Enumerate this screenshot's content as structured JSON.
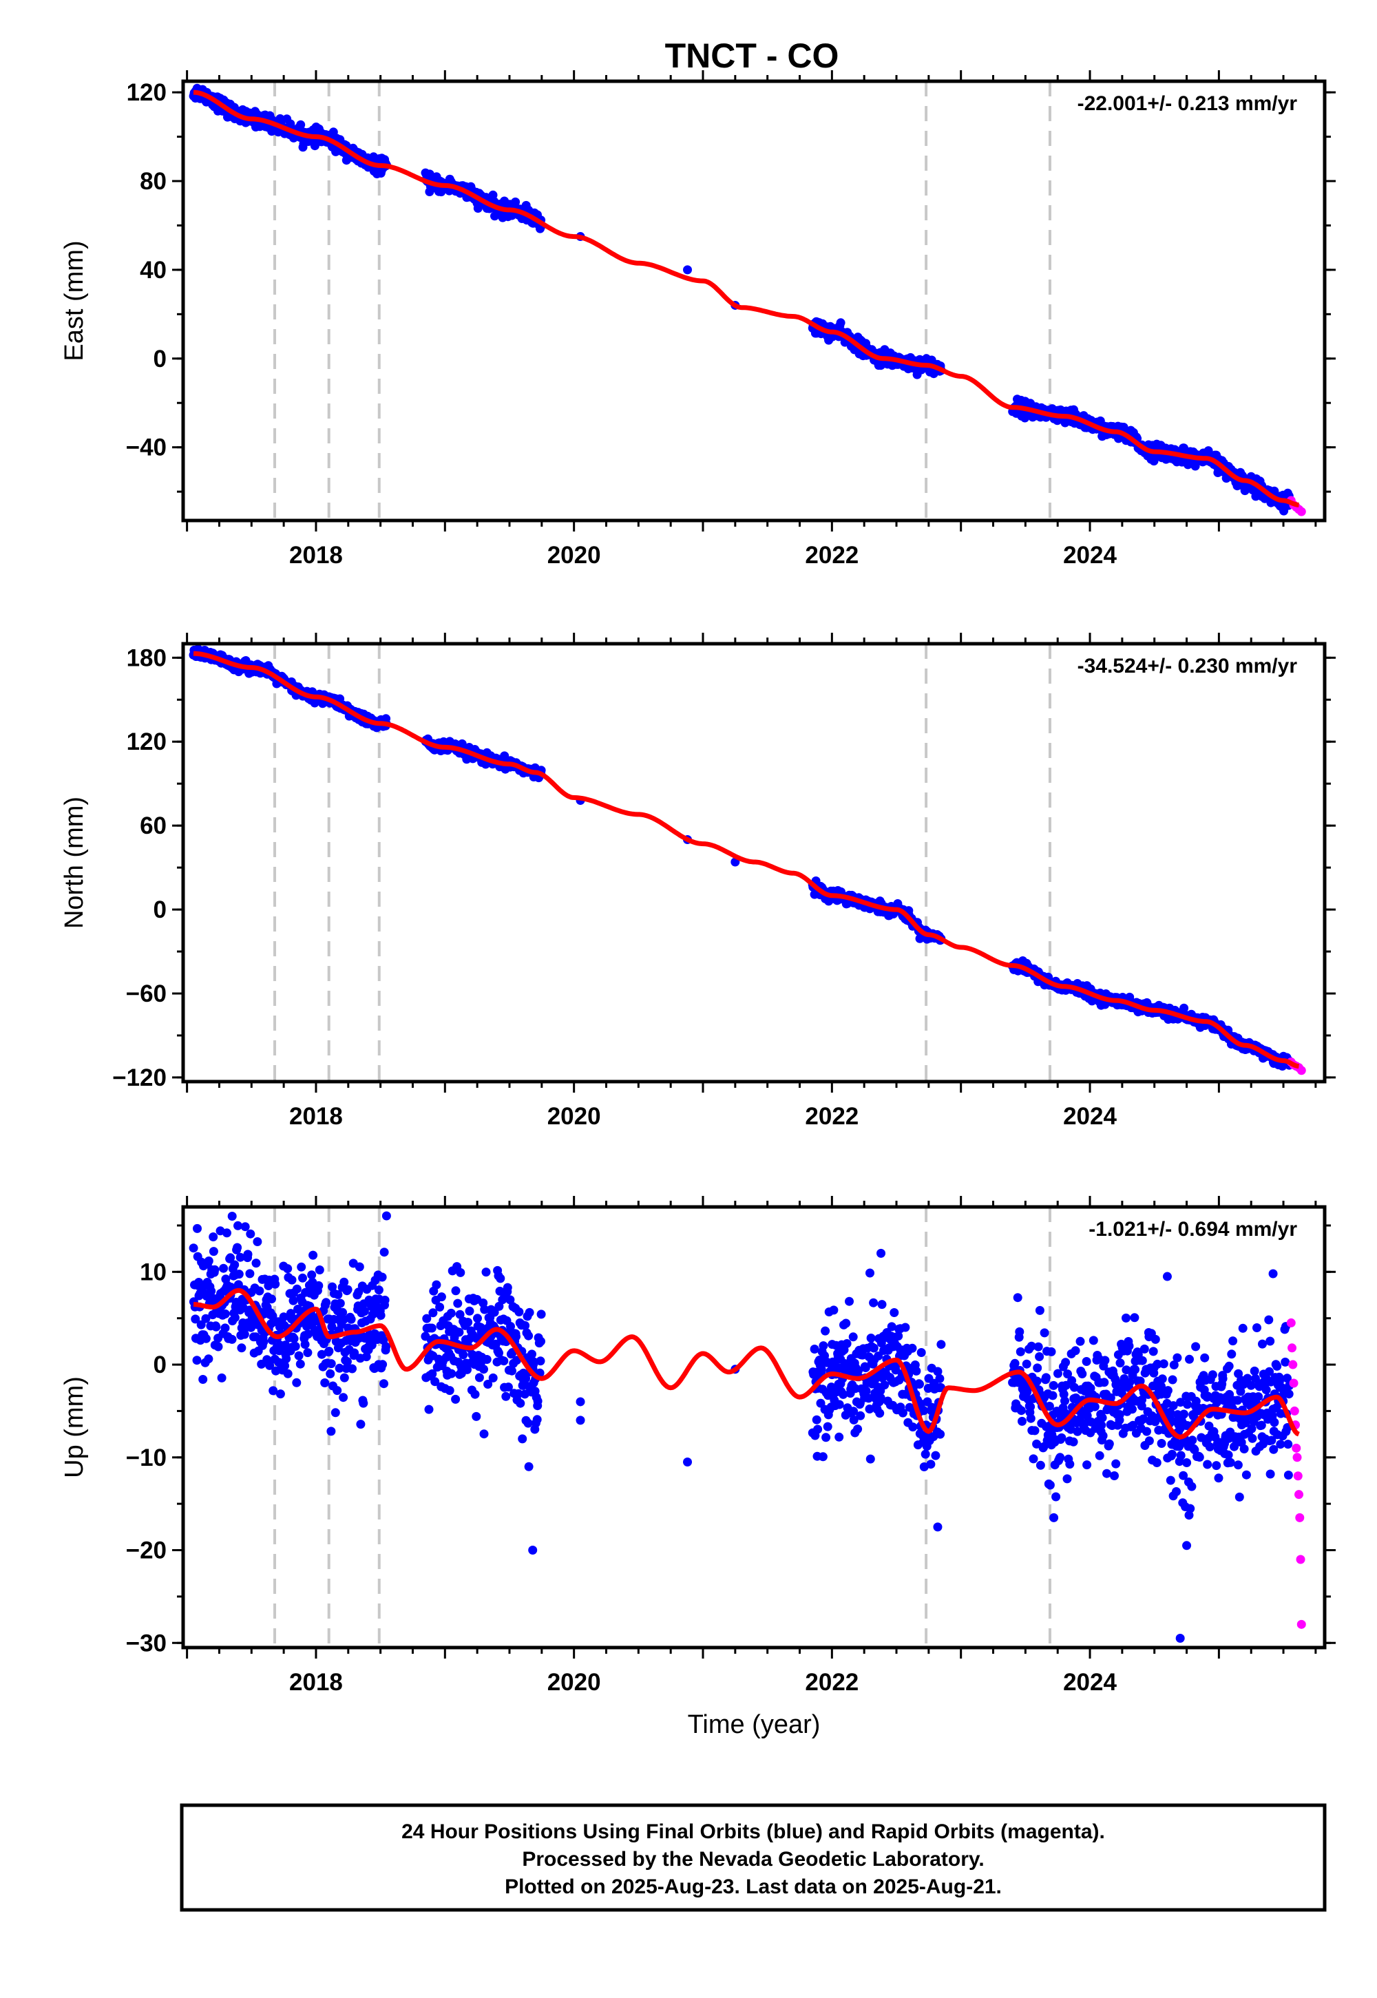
{
  "title": "TNCT - CO",
  "xlabel": "Time (year)",
  "footer": {
    "line1": "24 Hour Positions Using Final Orbits (blue) and Rapid Orbits (magenta).",
    "line2": "Processed by the Nevada Geodetic Laboratory.",
    "line3": "Plotted on 2025-Aug-23. Last data on 2025-Aug-21."
  },
  "colors": {
    "final_orbits": "#0000ff",
    "rapid_orbits": "#ff00ff",
    "model": "#ff0000",
    "events": "#c8c8c8"
  },
  "chart_data": [
    {
      "type": "scatter",
      "component": "east",
      "ylabel": "East (mm)",
      "rate_label": "-22.001+/- 0.213 mm/yr",
      "xlim": [
        2016.97,
        2025.82
      ],
      "ylim": [
        -73,
        125
      ],
      "x_ticks": [
        2018,
        2020,
        2022,
        2024
      ],
      "y_ticks": [
        120,
        80,
        40,
        0,
        -40
      ],
      "y_tick_labels": [
        "120",
        "80",
        "40",
        "0",
        "−40"
      ],
      "event_lines": [
        2017.68,
        2018.1,
        2018.49,
        2022.73,
        2023.69
      ],
      "data_windows": [
        [
          2017.05,
          2018.55
        ],
        [
          2018.85,
          2019.75
        ],
        [
          2021.85,
          2022.85
        ],
        [
          2023.4,
          2025.55
        ]
      ],
      "isolated_points": [
        [
          2020.05,
          55
        ],
        [
          2020.88,
          40
        ],
        [
          2021.25,
          24
        ]
      ],
      "model_knots": [
        [
          2017.05,
          120
        ],
        [
          2017.5,
          108
        ],
        [
          2018.0,
          100
        ],
        [
          2018.5,
          87
        ],
        [
          2019.0,
          78
        ],
        [
          2019.5,
          67
        ],
        [
          2020.0,
          55
        ],
        [
          2020.5,
          43
        ],
        [
          2021.0,
          35
        ],
        [
          2021.3,
          23
        ],
        [
          2021.7,
          19
        ],
        [
          2022.0,
          12
        ],
        [
          2022.4,
          0
        ],
        [
          2022.73,
          -3
        ],
        [
          2023.0,
          -8
        ],
        [
          2023.4,
          -22
        ],
        [
          2023.8,
          -26
        ],
        [
          2024.2,
          -33
        ],
        [
          2024.5,
          -42
        ],
        [
          2024.9,
          -45
        ],
        [
          2025.2,
          -55
        ],
        [
          2025.5,
          -64
        ],
        [
          2025.62,
          -66
        ]
      ],
      "noise_sd": 1.6,
      "rapid_orbits": {
        "x_from": 2025.56,
        "x_to": 2025.64,
        "y_values": [
          -64,
          -66,
          -67,
          -68,
          -69
        ]
      }
    },
    {
      "type": "scatter",
      "component": "north",
      "ylabel": "North (mm)",
      "rate_label": "-34.524+/- 0.230 mm/yr",
      "xlim": [
        2016.97,
        2025.82
      ],
      "ylim": [
        -123,
        190
      ],
      "x_ticks": [
        2018,
        2020,
        2022,
        2024
      ],
      "y_ticks": [
        180,
        120,
        60,
        0,
        -60,
        -120
      ],
      "y_tick_labels": [
        "180",
        "120",
        "60",
        "0",
        "−60",
        "−120"
      ],
      "event_lines": [
        2017.68,
        2018.1,
        2018.49,
        2022.73,
        2023.69
      ],
      "data_windows": [
        [
          2017.05,
          2018.55
        ],
        [
          2018.85,
          2019.75
        ],
        [
          2021.85,
          2022.85
        ],
        [
          2023.4,
          2025.55
        ]
      ],
      "isolated_points": [
        [
          2020.05,
          78
        ],
        [
          2020.88,
          50
        ],
        [
          2021.25,
          34
        ]
      ],
      "model_knots": [
        [
          2017.05,
          183
        ],
        [
          2017.5,
          173
        ],
        [
          2018.0,
          152
        ],
        [
          2018.5,
          133
        ],
        [
          2019.0,
          116
        ],
        [
          2019.5,
          104
        ],
        [
          2019.7,
          98
        ],
        [
          2020.0,
          80
        ],
        [
          2020.5,
          68
        ],
        [
          2021.0,
          47
        ],
        [
          2021.4,
          34
        ],
        [
          2021.7,
          26
        ],
        [
          2022.0,
          10
        ],
        [
          2022.5,
          0
        ],
        [
          2022.75,
          -18
        ],
        [
          2023.0,
          -27
        ],
        [
          2023.4,
          -40
        ],
        [
          2023.8,
          -55
        ],
        [
          2024.2,
          -65
        ],
        [
          2024.5,
          -72
        ],
        [
          2024.9,
          -80
        ],
        [
          2025.2,
          -97
        ],
        [
          2025.5,
          -108
        ],
        [
          2025.62,
          -112
        ]
      ],
      "noise_sd": 1.8,
      "rapid_orbits": {
        "x_from": 2025.56,
        "x_to": 2025.64,
        "y_values": [
          -109,
          -111,
          -112,
          -113,
          -115
        ]
      }
    },
    {
      "type": "scatter",
      "component": "up",
      "ylabel": "Up (mm)",
      "rate_label": "-1.021+/- 0.694 mm/yr",
      "xlim": [
        2016.97,
        2025.82
      ],
      "ylim": [
        -30.5,
        17
      ],
      "x_ticks": [
        2018,
        2020,
        2022,
        2024
      ],
      "y_ticks": [
        10,
        0,
        -10,
        -20,
        -30
      ],
      "y_tick_labels": [
        "10",
        "0",
        "−10",
        "−20",
        "−30"
      ],
      "event_lines": [
        2017.68,
        2018.1,
        2018.49,
        2022.73,
        2023.69
      ],
      "data_windows": [
        [
          2017.05,
          2018.55
        ],
        [
          2018.85,
          2019.75
        ],
        [
          2021.85,
          2022.85
        ],
        [
          2023.4,
          2025.55
        ]
      ],
      "isolated_points": [
        [
          2019.6,
          -8
        ],
        [
          2019.65,
          -11
        ],
        [
          2019.68,
          -20
        ],
        [
          2020.05,
          -6
        ],
        [
          2020.05,
          -4
        ],
        [
          2020.88,
          -10.5
        ],
        [
          2021.25,
          -0.5
        ]
      ],
      "model_knots": [
        [
          2017.05,
          6.5
        ],
        [
          2017.2,
          6.2
        ],
        [
          2017.4,
          8
        ],
        [
          2017.7,
          3
        ],
        [
          2018.0,
          6
        ],
        [
          2018.1,
          3
        ],
        [
          2018.3,
          3.5
        ],
        [
          2018.5,
          4.2
        ],
        [
          2018.7,
          -0.5
        ],
        [
          2018.95,
          2.5
        ],
        [
          2019.2,
          1.8
        ],
        [
          2019.4,
          3.8
        ],
        [
          2019.75,
          -1.5
        ],
        [
          2020.0,
          1.5
        ],
        [
          2020.2,
          0.3
        ],
        [
          2020.45,
          3
        ],
        [
          2020.75,
          -2.5
        ],
        [
          2021.0,
          1.2
        ],
        [
          2021.2,
          -0.8
        ],
        [
          2021.45,
          1.8
        ],
        [
          2021.75,
          -3.5
        ],
        [
          2022.0,
          -1
        ],
        [
          2022.2,
          -1.5
        ],
        [
          2022.5,
          0.5
        ],
        [
          2022.75,
          -7.2
        ],
        [
          2022.9,
          -2.5
        ],
        [
          2023.1,
          -2.8
        ],
        [
          2023.45,
          -0.8
        ],
        [
          2023.75,
          -6.5
        ],
        [
          2024.0,
          -3.8
        ],
        [
          2024.2,
          -4.2
        ],
        [
          2024.4,
          -2.3
        ],
        [
          2024.7,
          -7.8
        ],
        [
          2024.95,
          -4.8
        ],
        [
          2025.2,
          -5.2
        ],
        [
          2025.45,
          -3.5
        ],
        [
          2025.62,
          -7.5
        ]
      ],
      "noise_sd": 3.3,
      "outliers": [
        [
          2024.7,
          -29.5
        ],
        [
          2022.82,
          -17.5
        ],
        [
          2024.75,
          -19.5
        ],
        [
          2023.72,
          -16.5
        ],
        [
          2024.6,
          9.5
        ],
        [
          2025.42,
          9.8
        ],
        [
          2022.38,
          12
        ],
        [
          2017.35,
          16
        ]
      ],
      "rapid_orbits": {
        "x_from": 2025.56,
        "x_to": 2025.64,
        "y_values": [
          4.5,
          1.8,
          0,
          -2,
          -5,
          -6.5,
          -9,
          -10,
          -12,
          -14,
          -16.5,
          -21,
          -28
        ]
      }
    }
  ]
}
